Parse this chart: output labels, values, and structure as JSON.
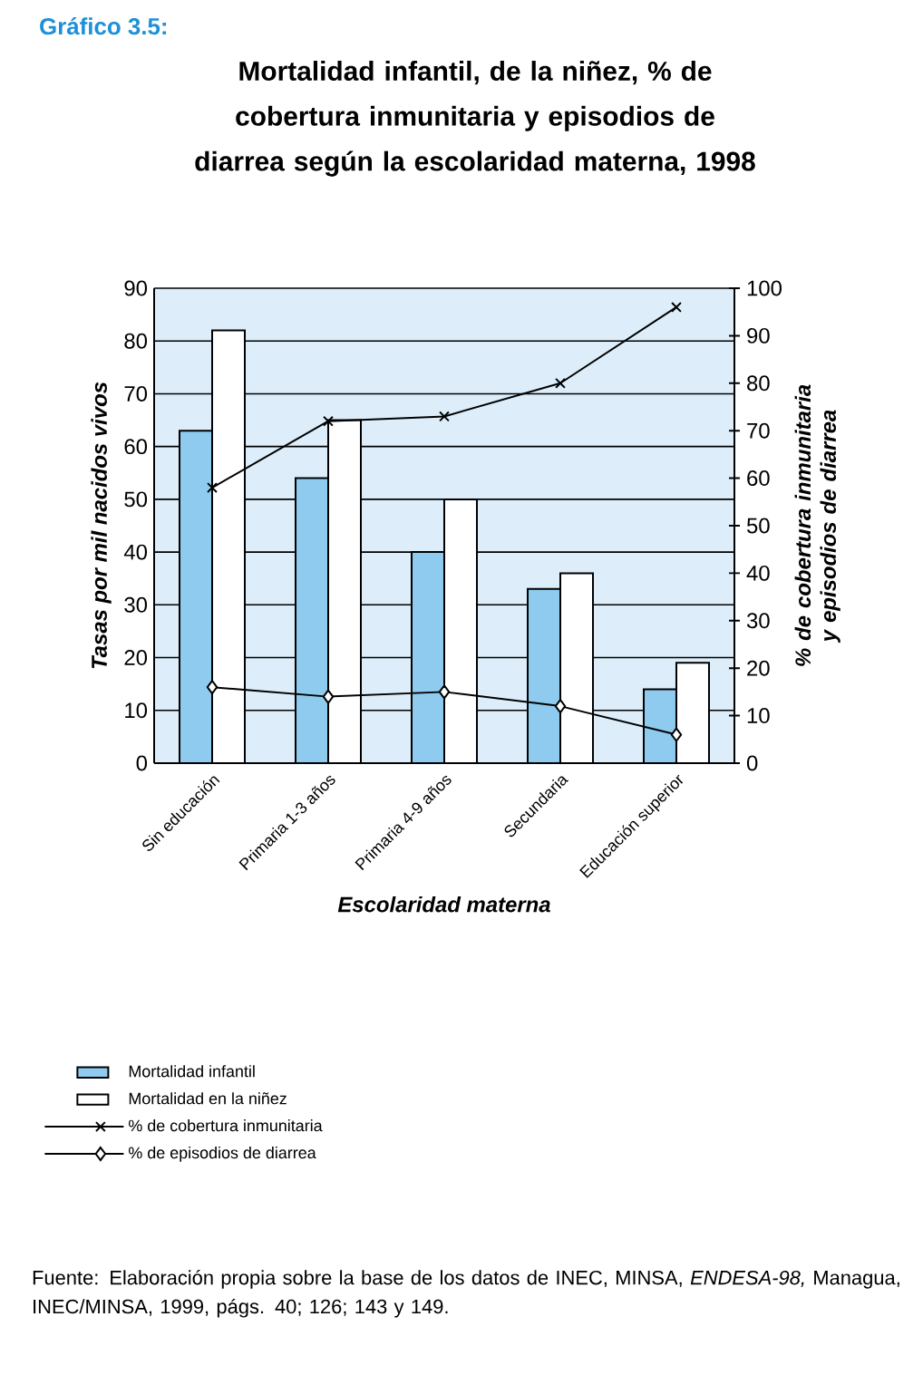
{
  "chart_data": {
    "type": "bar",
    "title": "Gráfico 3.5:",
    "subtitle": "Mortalidad infantil, de la niñez, % de cobertura inmunitaria y episodios de diarrea según la escolaridad materna, 1998",
    "categories": [
      "Sin educación",
      "Primaria 1-3 años",
      "Primaria 4-9 años",
      "Secundaria",
      "Educación superior"
    ],
    "series": [
      {
        "name": "Mortalidad infantil",
        "color": "#8ecbee",
        "values": [
          63,
          54,
          40,
          33,
          14
        ]
      },
      {
        "name": "Mortalidad en la niñez",
        "color": "#ffffff",
        "values": [
          82,
          65,
          50,
          36,
          19
        ]
      },
      {
        "name": "% de cobertura inmunitaria",
        "type": "line",
        "axis": "y2",
        "marker": "cross",
        "color": "#000000",
        "values": [
          58,
          72,
          73,
          80,
          96
        ]
      },
      {
        "name": "% de episodios de diarrea",
        "type": "line",
        "axis": "y2",
        "marker": "diamond",
        "color": "#000000",
        "values": [
          16,
          14,
          15,
          12,
          6
        ]
      }
    ],
    "xlabel": "Escolaridad materna",
    "ylabel": "Tasas por mil nacidos vivos",
    "y2label": "% de cobertura inmunitaria y episodios de diarrea",
    "ylim": [
      0,
      90
    ],
    "yticks": [
      0,
      10,
      20,
      30,
      40,
      50,
      60,
      70,
      80,
      90
    ],
    "y2lim": [
      0,
      100
    ],
    "y2ticks": [
      0,
      10,
      20,
      30,
      40,
      50,
      60,
      70,
      80,
      90,
      100
    ],
    "grid": "y",
    "legend": "bottom",
    "annotations": [
      "Fuente: Elaboración propia sobre la base de los datos de INEC, MINSA, *ENDESA-98,* Managua, INEC/MINSA, 1999, págs. 40; 126; 143 y 149."
    ]
  }
}
